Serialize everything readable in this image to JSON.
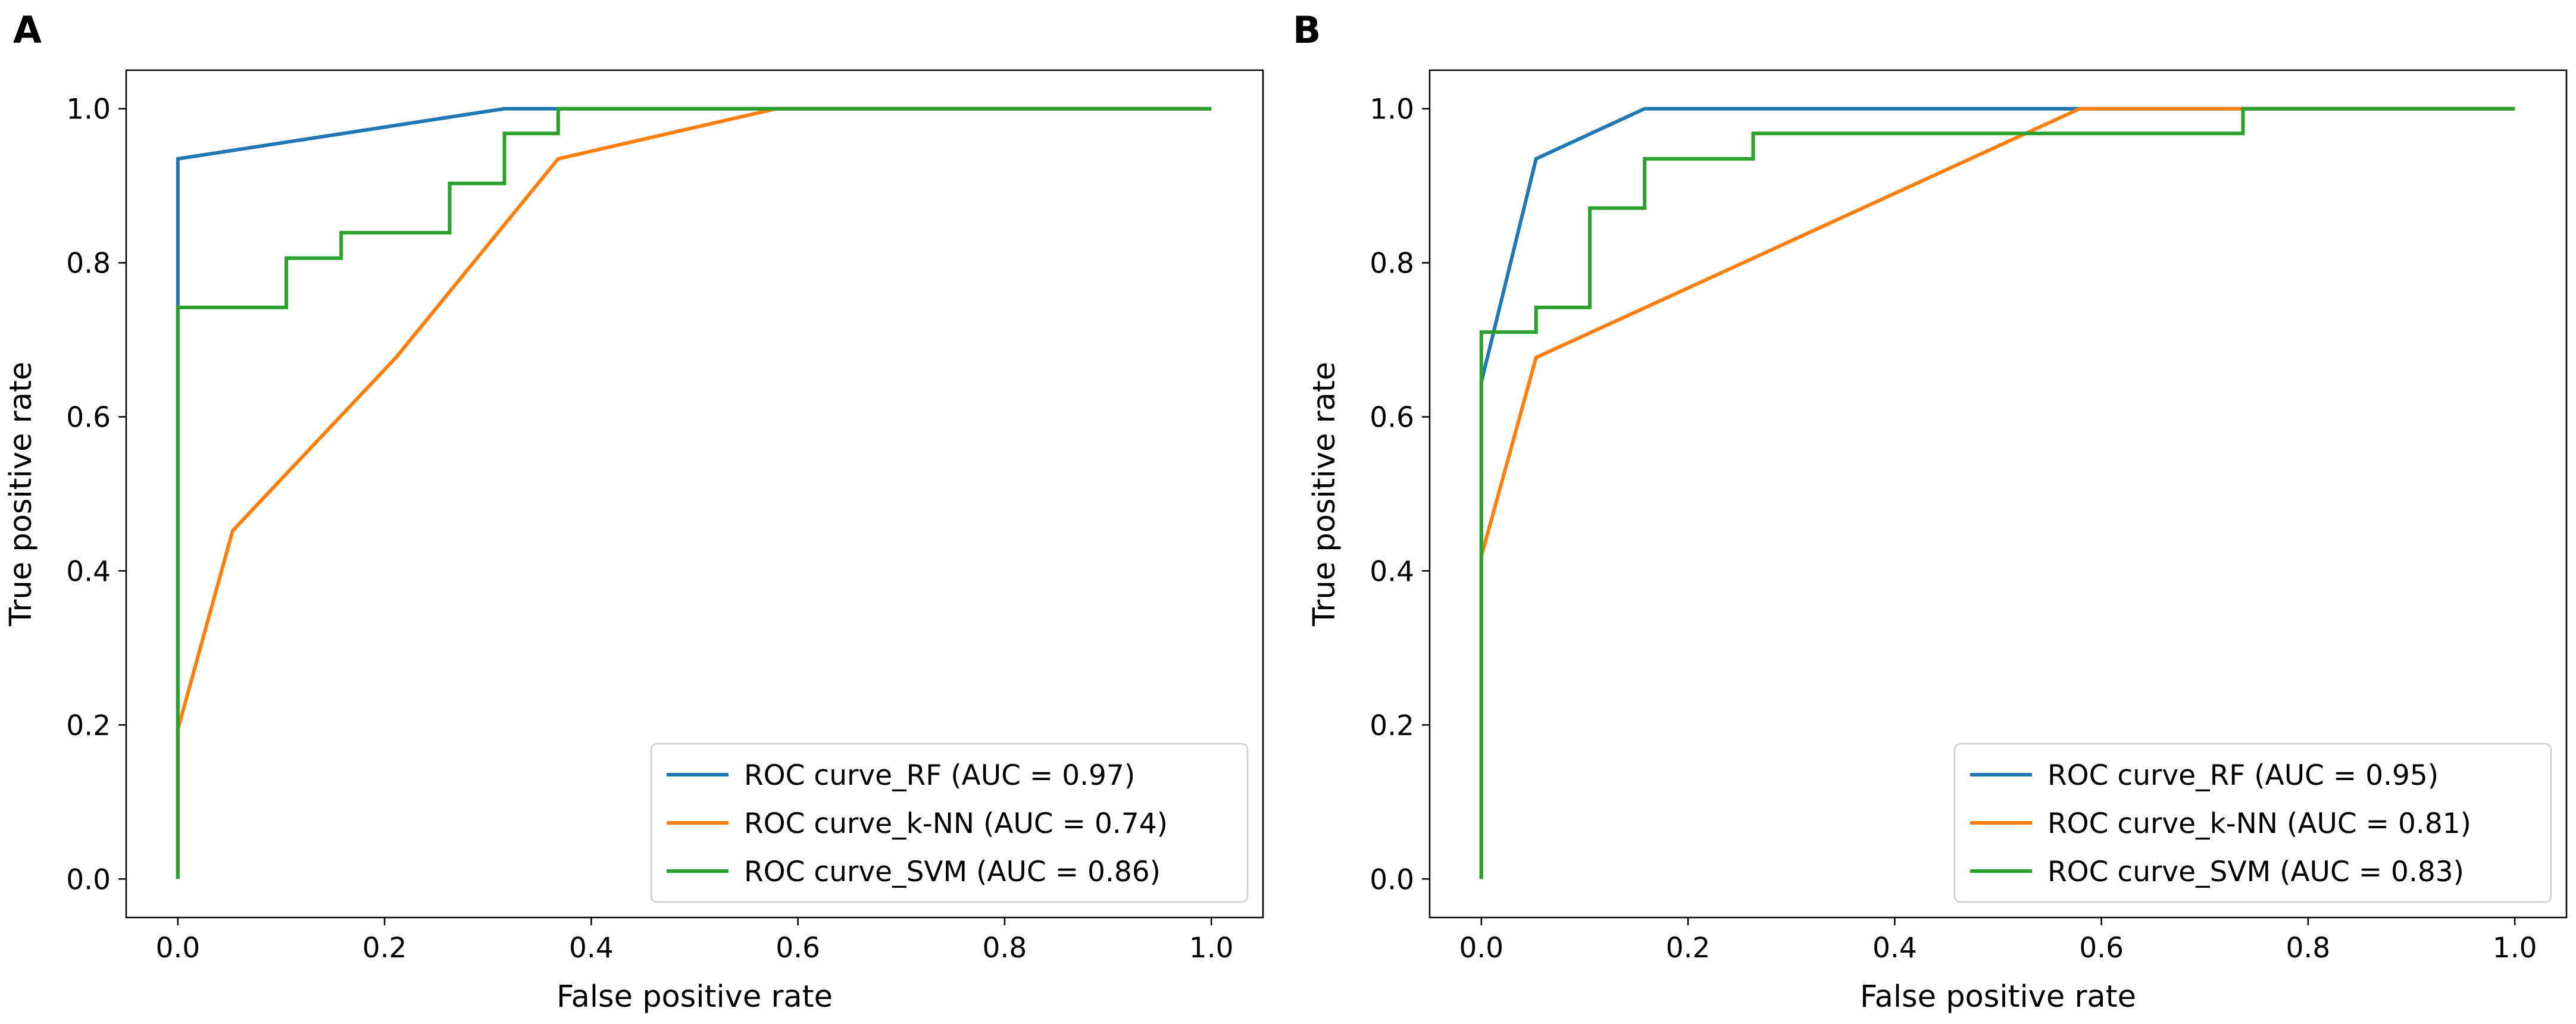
{
  "figure": {
    "panels": [
      {
        "label": "A"
      },
      {
        "label": "B"
      }
    ]
  },
  "colors": {
    "RF": "#1f77b4",
    "kNN": "#ff7f0e",
    "SVM": "#2ca02c",
    "axes": "#000000",
    "legend_border": "#cccccc"
  },
  "chart_data": [
    {
      "type": "line",
      "panel": "A",
      "title": "",
      "xlabel": "False positive rate",
      "ylabel": "True positive rate",
      "xlim": [
        -0.05,
        1.05
      ],
      "ylim": [
        -0.05,
        1.05
      ],
      "xticks": [
        0.0,
        0.2,
        0.4,
        0.6,
        0.8,
        1.0
      ],
      "yticks": [
        0.0,
        0.2,
        0.4,
        0.6,
        0.8,
        1.0
      ],
      "xtick_labels": [
        "0.0",
        "0.2",
        "0.4",
        "0.6",
        "0.8",
        "1.0"
      ],
      "ytick_labels": [
        "0.0",
        "0.2",
        "0.4",
        "0.6",
        "0.8",
        "1.0"
      ],
      "grid": false,
      "legend_position": "lower-right",
      "series": [
        {
          "key": "RF",
          "name": "ROC curve_RF (AUC = 0.97)",
          "x": [
            0.0,
            0.0,
            0.316,
            1.0
          ],
          "y": [
            0.0,
            0.935,
            1.0,
            1.0
          ]
        },
        {
          "key": "kNN",
          "name": "ROC curve_k-NN (AUC = 0.74)",
          "x": [
            0.0,
            0.0,
            0.053,
            0.211,
            0.368,
            0.579,
            1.0
          ],
          "y": [
            0.0,
            0.194,
            0.452,
            0.677,
            0.935,
            1.0,
            1.0
          ]
        },
        {
          "key": "SVM",
          "name": "ROC curve_SVM (AUC = 0.86)",
          "x": [
            0.0,
            0.0,
            0.105,
            0.105,
            0.158,
            0.158,
            0.263,
            0.263,
            0.316,
            0.316,
            0.368,
            0.368,
            1.0
          ],
          "y": [
            0.0,
            0.742,
            0.742,
            0.806,
            0.806,
            0.839,
            0.839,
            0.903,
            0.903,
            0.968,
            0.968,
            1.0,
            1.0
          ]
        }
      ]
    },
    {
      "type": "line",
      "panel": "B",
      "title": "",
      "xlabel": "False positive rate",
      "ylabel": "True positive rate",
      "xlim": [
        -0.05,
        1.05
      ],
      "ylim": [
        -0.05,
        1.05
      ],
      "xticks": [
        0.0,
        0.2,
        0.4,
        0.6,
        0.8,
        1.0
      ],
      "yticks": [
        0.0,
        0.2,
        0.4,
        0.6,
        0.8,
        1.0
      ],
      "xtick_labels": [
        "0.0",
        "0.2",
        "0.4",
        "0.6",
        "0.8",
        "1.0"
      ],
      "ytick_labels": [
        "0.0",
        "0.2",
        "0.4",
        "0.6",
        "0.8",
        "1.0"
      ],
      "grid": false,
      "legend_position": "lower-right",
      "series": [
        {
          "key": "RF",
          "name": "ROC curve_RF (AUC = 0.95)",
          "x": [
            0.0,
            0.0,
            0.053,
            0.158,
            1.0
          ],
          "y": [
            0.0,
            0.645,
            0.935,
            1.0,
            1.0
          ]
        },
        {
          "key": "kNN",
          "name": "ROC curve_k-NN (AUC = 0.81)",
          "x": [
            0.0,
            0.0,
            0.053,
            0.579,
            1.0
          ],
          "y": [
            0.0,
            0.419,
            0.677,
            1.0,
            1.0
          ]
        },
        {
          "key": "SVM",
          "name": "ROC curve_SVM (AUC = 0.83)",
          "x": [
            0.0,
            0.0,
            0.053,
            0.053,
            0.105,
            0.105,
            0.158,
            0.158,
            0.263,
            0.263,
            0.737,
            0.737,
            1.0
          ],
          "y": [
            0.0,
            0.71,
            0.71,
            0.742,
            0.742,
            0.871,
            0.871,
            0.935,
            0.935,
            0.968,
            0.968,
            1.0,
            1.0
          ]
        }
      ]
    }
  ]
}
